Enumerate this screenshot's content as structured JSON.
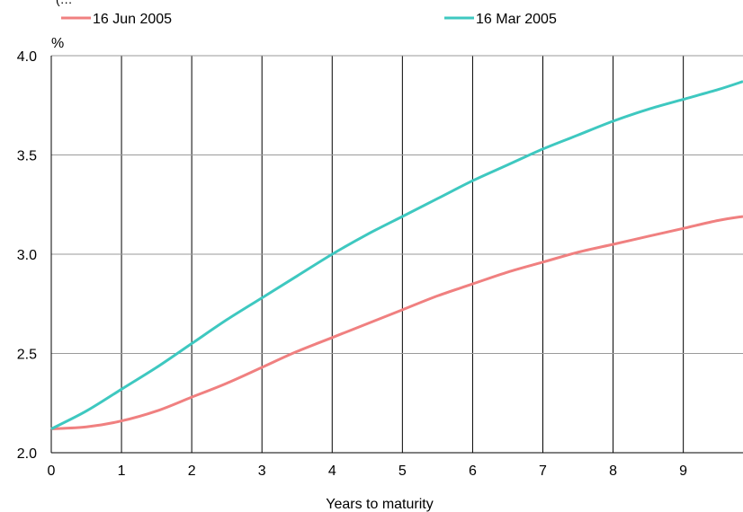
{
  "header_fragment": "(…",
  "chart_data": {
    "type": "line",
    "title": "",
    "xlabel": "Years to maturity",
    "ylabel": "%",
    "xlim": [
      0,
      9.85
    ],
    "ylim": [
      2.0,
      4.0
    ],
    "x_ticks": [
      "0",
      "1",
      "2",
      "3",
      "4",
      "5",
      "6",
      "7",
      "8",
      "9"
    ],
    "y_ticks": [
      "2.0",
      "2.5",
      "3.0",
      "3.5",
      "4.0"
    ],
    "grid": true,
    "legend_position": "top",
    "x": [
      0,
      0.5,
      1,
      1.5,
      2,
      2.5,
      3,
      3.5,
      4,
      4.5,
      5,
      5.5,
      6,
      6.5,
      7,
      7.5,
      8,
      8.5,
      9,
      9.5,
      9.85
    ],
    "series": [
      {
        "name": "16 Jun 2005",
        "color": "#f08080",
        "values": [
          2.12,
          2.13,
          2.16,
          2.21,
          2.28,
          2.35,
          2.43,
          2.51,
          2.58,
          2.65,
          2.72,
          2.79,
          2.85,
          2.91,
          2.96,
          3.01,
          3.05,
          3.09,
          3.13,
          3.17,
          3.19
        ]
      },
      {
        "name": "16 Mar 2005",
        "color": "#3ec8c0",
        "values": [
          2.12,
          2.21,
          2.32,
          2.43,
          2.55,
          2.67,
          2.78,
          2.89,
          3.0,
          3.1,
          3.19,
          3.28,
          3.37,
          3.45,
          3.53,
          3.6,
          3.67,
          3.73,
          3.78,
          3.83,
          3.87
        ]
      }
    ]
  }
}
